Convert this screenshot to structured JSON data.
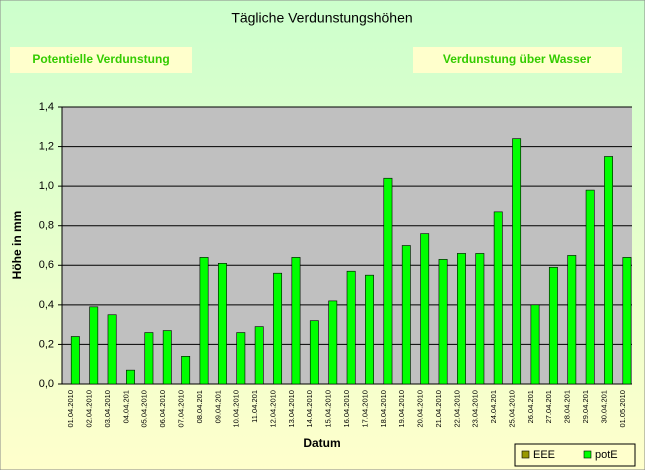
{
  "chart_data": {
    "type": "bar",
    "title": "Tägliche Verdunstungshöhen",
    "annotations": [
      "Potentielle Verdunstung",
      "Verdunstung über Wasser"
    ],
    "xlabel": "Datum",
    "ylabel": "Höhe in mm",
    "categories": [
      "01.04.2010",
      "02.04.2010",
      "03.04.2010",
      "04.04.201",
      "05.04.2010",
      "06.04.2010",
      "07.04.2010",
      "08.04.201",
      "09.04.201",
      "10.04.2010",
      "11.04.201",
      "12.04.2010",
      "13.04.2010",
      "14.04.2010",
      "15.04.2010",
      "16.04.2010",
      "17.04.2010",
      "18.04.2010",
      "19.04.2010",
      "20.04.2010",
      "21.04.2010",
      "22.04.2010",
      "23.04.2010",
      "24.04.201",
      "25.04.2010",
      "26.04.201",
      "27.04.201",
      "28.04.201",
      "29.04.201",
      "30.04.201",
      "01.05.2010"
    ],
    "series": [
      {
        "name": "EEE",
        "color": "#999900",
        "values": [
          null,
          null,
          null,
          null,
          null,
          null,
          null,
          null,
          null,
          null,
          null,
          null,
          null,
          null,
          null,
          null,
          null,
          null,
          null,
          null,
          null,
          null,
          null,
          null,
          null,
          null,
          null,
          null,
          null,
          null,
          null
        ]
      },
      {
        "name": "potE",
        "color": "#00ff00",
        "values": [
          0.24,
          0.39,
          0.35,
          0.07,
          0.26,
          0.27,
          0.14,
          0.64,
          0.61,
          0.26,
          0.29,
          0.56,
          0.64,
          0.32,
          0.42,
          0.57,
          0.55,
          1.04,
          0.7,
          0.76,
          0.63,
          0.66,
          0.66,
          0.87,
          1.24,
          0.4,
          0.59,
          0.65,
          0.98,
          1.15,
          0.64
        ]
      }
    ],
    "ylim": [
      0,
      1.4
    ],
    "yticks": [
      {
        "value": 0,
        "label": "0,0"
      },
      {
        "value": 0.2,
        "label": "0,2"
      },
      {
        "value": 0.4,
        "label": "0,4"
      },
      {
        "value": 0.6,
        "label": "0,6"
      },
      {
        "value": 0.8,
        "label": "0,8"
      },
      {
        "value": 1.0,
        "label": "1,0"
      },
      {
        "value": 1.2,
        "label": "1,2"
      },
      {
        "value": 1.4,
        "label": "1,4"
      }
    ],
    "grid": true,
    "legend": "lower right"
  }
}
